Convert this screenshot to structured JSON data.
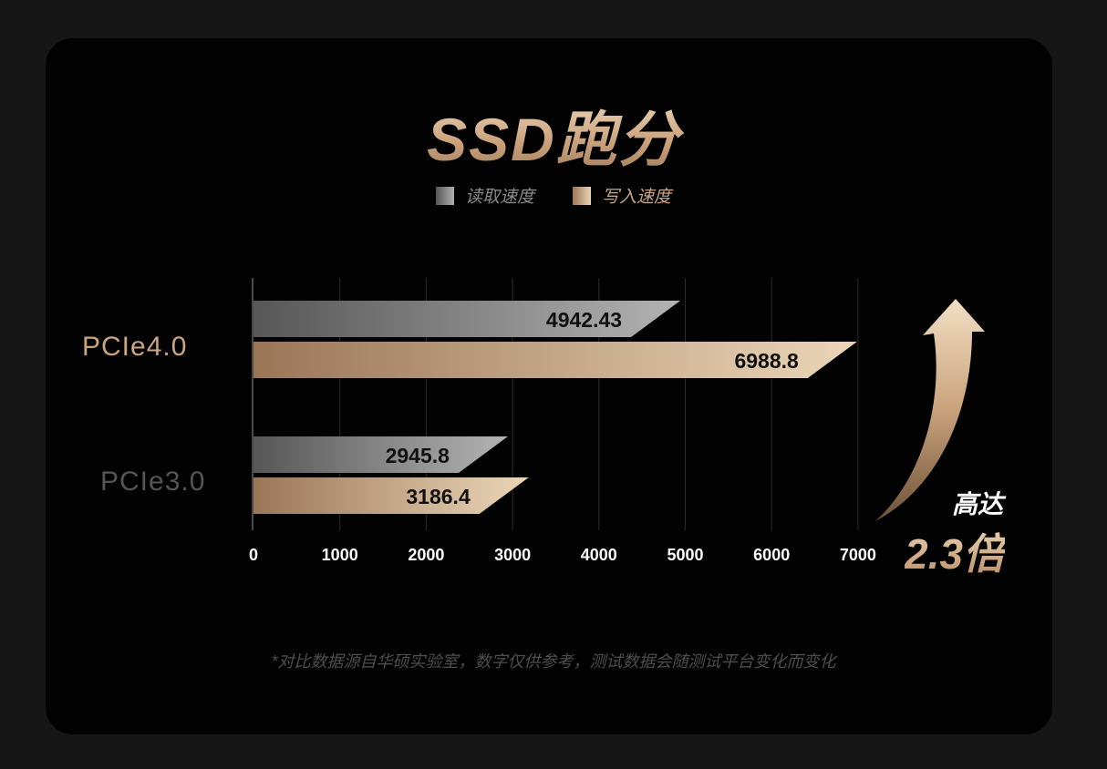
{
  "title": "SSD跑分",
  "legend": {
    "read": "读取速度",
    "write": "写入速度"
  },
  "callout": {
    "line1": "高达",
    "line2": "2.3倍"
  },
  "footnote": "*对比数据源自华硕实验室，数字仅供参考，测试数据会随测试平台变化而变化",
  "colors": {
    "read_start": "#575757",
    "read_end": "#b3b3b3",
    "write_start": "#9a7657",
    "write_end": "#ecd6b8",
    "label_pcie4": "#c9a583",
    "label_pcie3": "#555555"
  },
  "chart_data": {
    "type": "bar",
    "orientation": "horizontal",
    "categories": [
      "PCIe4.0",
      "PCIe3.0"
    ],
    "series": [
      {
        "name": "读取速度",
        "values": [
          4942.43,
          2945.8
        ],
        "labels": [
          "4942.43",
          "2945.8"
        ]
      },
      {
        "name": "写入速度",
        "values": [
          6988.8,
          3186.4
        ],
        "labels": [
          "6988.8",
          "3186.4"
        ]
      }
    ],
    "xticks": [
      "0",
      "1000",
      "2000",
      "3000",
      "4000",
      "5000",
      "6000",
      "7000"
    ],
    "xlim": [
      0,
      7000
    ],
    "grid": true,
    "legend_position": "top-center"
  }
}
